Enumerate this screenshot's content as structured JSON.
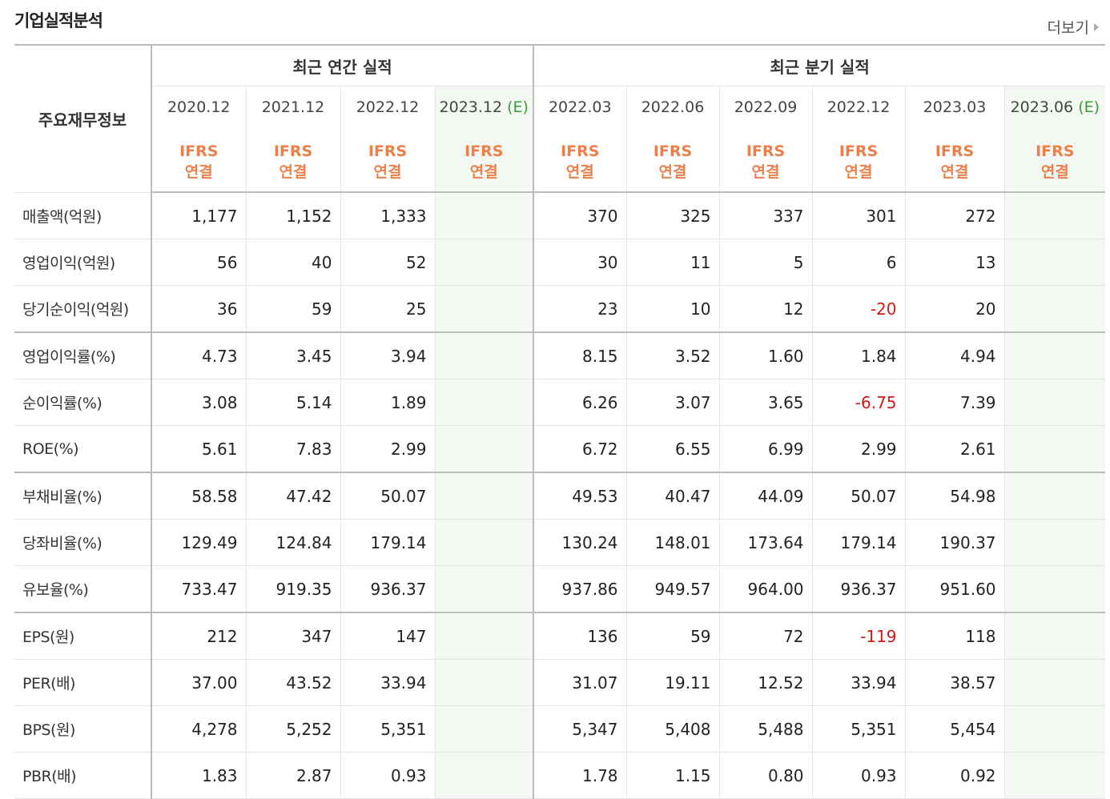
{
  "section": {
    "title": "기업실적분석",
    "more": "더보기"
  },
  "header": {
    "label": "주요재무정보",
    "annual_group": "최근 연간 실적",
    "quarter_group": "최근 분기 실적",
    "ifrs_top": "IFRS",
    "ifrs_bottom": "연결",
    "estimate_mark": "(E)",
    "annual_periods": [
      "2020.12",
      "2021.12",
      "2022.12",
      "2023.12"
    ],
    "annual_estimate": [
      false,
      false,
      false,
      true
    ],
    "quarter_periods": [
      "2022.03",
      "2022.06",
      "2022.09",
      "2022.12",
      "2023.03",
      "2023.06"
    ],
    "quarter_estimate": [
      false,
      false,
      false,
      false,
      false,
      true
    ]
  },
  "rows": [
    {
      "label": "매출액(억원)",
      "annual": [
        "1,177",
        "1,152",
        "1,333",
        ""
      ],
      "quarter": [
        "370",
        "325",
        "337",
        "301",
        "272",
        ""
      ]
    },
    {
      "label": "영업이익(억원)",
      "annual": [
        "56",
        "40",
        "52",
        ""
      ],
      "quarter": [
        "30",
        "11",
        "5",
        "6",
        "13",
        ""
      ]
    },
    {
      "label": "당기순이익(억원)",
      "annual": [
        "36",
        "59",
        "25",
        ""
      ],
      "quarter": [
        "23",
        "10",
        "12",
        "-20",
        "20",
        ""
      ],
      "group_end": true
    },
    {
      "label": "영업이익률(%)",
      "annual": [
        "4.73",
        "3.45",
        "3.94",
        ""
      ],
      "quarter": [
        "8.15",
        "3.52",
        "1.60",
        "1.84",
        "4.94",
        ""
      ]
    },
    {
      "label": "순이익률(%)",
      "annual": [
        "3.08",
        "5.14",
        "1.89",
        ""
      ],
      "quarter": [
        "6.26",
        "3.07",
        "3.65",
        "-6.75",
        "7.39",
        ""
      ]
    },
    {
      "label": "ROE(%)",
      "annual": [
        "5.61",
        "7.83",
        "2.99",
        ""
      ],
      "quarter": [
        "6.72",
        "6.55",
        "6.99",
        "2.99",
        "2.61",
        ""
      ],
      "group_end": true
    },
    {
      "label": "부채비율(%)",
      "annual": [
        "58.58",
        "47.42",
        "50.07",
        ""
      ],
      "quarter": [
        "49.53",
        "40.47",
        "44.09",
        "50.07",
        "54.98",
        ""
      ]
    },
    {
      "label": "당좌비율(%)",
      "annual": [
        "129.49",
        "124.84",
        "179.14",
        ""
      ],
      "quarter": [
        "130.24",
        "148.01",
        "173.64",
        "179.14",
        "190.37",
        ""
      ]
    },
    {
      "label": "유보율(%)",
      "annual": [
        "733.47",
        "919.35",
        "936.37",
        ""
      ],
      "quarter": [
        "937.86",
        "949.57",
        "964.00",
        "936.37",
        "951.60",
        ""
      ],
      "group_end": true
    },
    {
      "label": "EPS(원)",
      "annual": [
        "212",
        "347",
        "147",
        ""
      ],
      "quarter": [
        "136",
        "59",
        "72",
        "-119",
        "118",
        ""
      ]
    },
    {
      "label": "PER(배)",
      "annual": [
        "37.00",
        "43.52",
        "33.94",
        ""
      ],
      "quarter": [
        "31.07",
        "19.11",
        "12.52",
        "33.94",
        "38.57",
        ""
      ]
    },
    {
      "label": "BPS(원)",
      "annual": [
        "4,278",
        "5,252",
        "5,351",
        ""
      ],
      "quarter": [
        "5,347",
        "5,408",
        "5,488",
        "5,351",
        "5,454",
        ""
      ]
    },
    {
      "label": "PBR(배)",
      "annual": [
        "1.83",
        "2.87",
        "0.93",
        ""
      ],
      "quarter": [
        "1.78",
        "1.15",
        "0.80",
        "0.93",
        "0.92",
        ""
      ]
    }
  ]
}
